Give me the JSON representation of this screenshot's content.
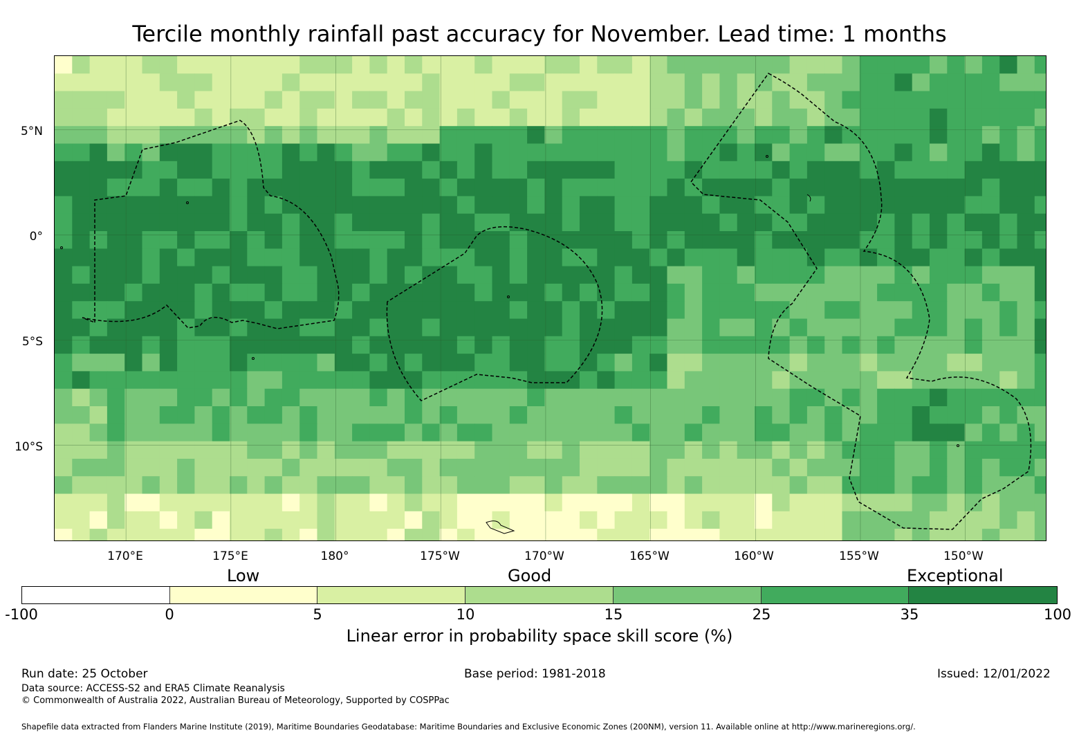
{
  "title": "Tercile monthly rainfall past accuracy for November. Lead time: 1 months",
  "map": {
    "lat_labels": [
      "5°N",
      "0°",
      "5°S",
      "10°S"
    ],
    "lon_labels": [
      "170°E",
      "175°E",
      "180°",
      "175°W",
      "170°W",
      "165°W",
      "160°W",
      "155°W",
      "150°W"
    ],
    "lat_values": [
      5,
      0,
      -5,
      -10
    ],
    "lon_values": [
      170,
      175,
      180,
      185,
      190,
      195,
      200,
      205,
      210
    ],
    "lon_range": [
      166.6,
      213.9
    ],
    "lat_range": [
      -14.6,
      8.5
    ],
    "cell_size_deg": 0.8333
  },
  "legend": {
    "categories": [
      "Low",
      "Good",
      "Exceptional"
    ],
    "ticks": [
      "-100",
      "0",
      "5",
      "10",
      "15",
      "25",
      "35",
      "100"
    ],
    "colors": [
      "#ffffff",
      "#ffffcc",
      "#d9f0a3",
      "#addd8e",
      "#78c679",
      "#41ab5d",
      "#238443"
    ],
    "title": "Linear error in probability space skill score (%)"
  },
  "footer": {
    "run_date": "Run date: 25 October",
    "base_period": "Base period: 1981-2018",
    "issued": "Issued: 12/01/2022",
    "data_source": "Data source: ACCESS-S2 and ERA5 Climate Reanalysis",
    "copyright": "© Commonwealth of Australia 2022, Australian Bureau of Meteorology, Supported by COSPPac",
    "shapefile": "Shapefile data extracted from Flanders Marine Institute (2019), Maritime Boundaries Geodatabase: Maritime Boundaries and Exclusive Economic Zones (200NM), version 11. Available online at http://www.marineregions.org/."
  }
}
